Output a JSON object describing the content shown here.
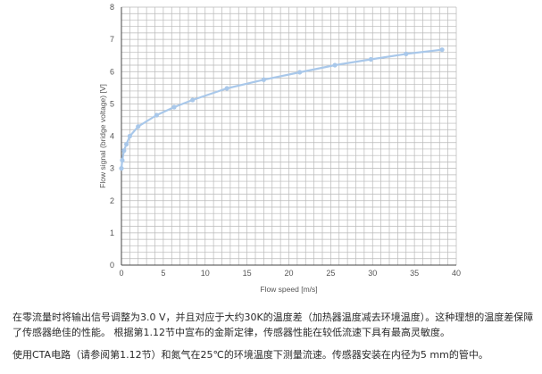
{
  "chart_data": {
    "type": "line",
    "xlabel": "Flow speed [m/s]",
    "ylabel": "Flow signal (bridge voltage) [V]",
    "xlim": [
      0,
      40
    ],
    "ylim": [
      0,
      8
    ],
    "x_ticks": [
      "0",
      "5",
      "10",
      "15",
      "20",
      "25",
      "30",
      "35",
      "40"
    ],
    "y_ticks": [
      "0",
      "1",
      "2",
      "3",
      "4",
      "5",
      "6",
      "7",
      "8"
    ],
    "grid": true,
    "color": "#a9c8ea",
    "series": [
      {
        "x": [
          0,
          0.1,
          0.3,
          0.6,
          1.0,
          2.0,
          4.2,
          6.3,
          8.5,
          12.6,
          17.0,
          21.3,
          25.5,
          29.8,
          34.0,
          38.3
        ],
        "y": [
          3.0,
          3.25,
          3.55,
          3.75,
          4.0,
          4.3,
          4.65,
          4.9,
          5.12,
          5.48,
          5.75,
          5.98,
          6.2,
          6.38,
          6.55,
          6.68
        ]
      }
    ]
  },
  "text": {
    "paragraph_1": "在零流量时将输出信号调整为3.0 V，并且对应于大约30K的温度差（加热器温度减去环境温度）。这种理想的温度差保障了传感器绝佳的性能。 根据第1.12节中宣布的金斯定律，传感器性能在较低流速下具有最高灵敏度。",
    "paragraph_2": "使用CTA电路（请参阅第1.12节）和氮气在25℃的环境温度下测量流速。传感器安装在内径为5 mm的管中。"
  }
}
